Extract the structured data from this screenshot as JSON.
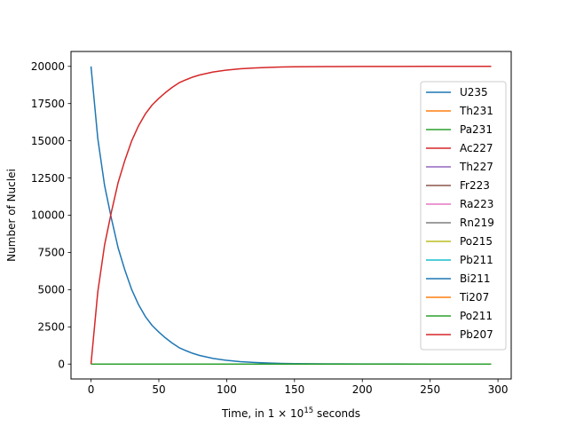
{
  "chart_data": {
    "type": "line",
    "title": "",
    "xlabel": "Time, in 1 × 10",
    "xlabel_exponent": "15",
    "xlabel_suffix": " seconds",
    "ylabel": "Number of Nuclei",
    "xlim": [
      -14.75,
      309.75
    ],
    "ylim": [
      -1000,
      21000
    ],
    "xticks": [
      0,
      50,
      100,
      150,
      200,
      250,
      300
    ],
    "xtick_labels": [
      "0",
      "50",
      "100",
      "150",
      "200",
      "250",
      "300"
    ],
    "yticks": [
      0,
      2500,
      5000,
      7500,
      10000,
      12500,
      15000,
      17500,
      20000
    ],
    "ytick_labels": [
      "0",
      "2500",
      "5000",
      "7500",
      "10000",
      "12500",
      "15000",
      "17500",
      "20000"
    ],
    "grid": false,
    "legend_position": "upper-right",
    "x": [
      0,
      5,
      10,
      15,
      20,
      25,
      30,
      35,
      40,
      45,
      50,
      55,
      60,
      65,
      70,
      75,
      80,
      90,
      100,
      110,
      120,
      130,
      140,
      150,
      175,
      200,
      225,
      250,
      275,
      295
    ],
    "series": [
      {
        "name": "U235",
        "color": "#1f77b4",
        "values": [
          20000,
          15150,
          12000,
          9800,
          7800,
          6300,
          5000,
          4000,
          3200,
          2600,
          2150,
          1750,
          1400,
          1100,
          900,
          720,
          580,
          380,
          250,
          160,
          110,
          70,
          45,
          30,
          15,
          7,
          4,
          2,
          1,
          0
        ]
      },
      {
        "name": "Th231",
        "color": "#ff7f0e",
        "values": [
          0,
          0,
          0,
          0,
          0,
          0,
          0,
          0,
          0,
          0,
          0,
          0,
          0,
          0,
          0,
          0,
          0,
          0,
          0,
          0,
          0,
          0,
          0,
          0,
          0,
          0,
          0,
          0,
          0,
          0
        ]
      },
      {
        "name": "Pa231",
        "color": "#2ca02c",
        "values": [
          0,
          0,
          0,
          0,
          0,
          0,
          0,
          0,
          0,
          0,
          0,
          0,
          0,
          0,
          0,
          0,
          0,
          0,
          0,
          0,
          0,
          0,
          0,
          0,
          0,
          0,
          0,
          0,
          0,
          0
        ]
      },
      {
        "name": "Ac227",
        "color": "#d62728",
        "values": [
          0,
          0,
          0,
          0,
          0,
          0,
          0,
          0,
          0,
          0,
          0,
          0,
          0,
          0,
          0,
          0,
          0,
          0,
          0,
          0,
          0,
          0,
          0,
          0,
          0,
          0,
          0,
          0,
          0,
          0
        ]
      },
      {
        "name": "Th227",
        "color": "#9467bd",
        "values": [
          0,
          0,
          0,
          0,
          0,
          0,
          0,
          0,
          0,
          0,
          0,
          0,
          0,
          0,
          0,
          0,
          0,
          0,
          0,
          0,
          0,
          0,
          0,
          0,
          0,
          0,
          0,
          0,
          0,
          0
        ]
      },
      {
        "name": "Fr223",
        "color": "#8c564b",
        "values": [
          0,
          0,
          0,
          0,
          0,
          0,
          0,
          0,
          0,
          0,
          0,
          0,
          0,
          0,
          0,
          0,
          0,
          0,
          0,
          0,
          0,
          0,
          0,
          0,
          0,
          0,
          0,
          0,
          0,
          0
        ]
      },
      {
        "name": "Ra223",
        "color": "#e377c2",
        "values": [
          0,
          0,
          0,
          0,
          0,
          0,
          0,
          0,
          0,
          0,
          0,
          0,
          0,
          0,
          0,
          0,
          0,
          0,
          0,
          0,
          0,
          0,
          0,
          0,
          0,
          0,
          0,
          0,
          0,
          0
        ]
      },
      {
        "name": "Rn219",
        "color": "#7f7f7f",
        "values": [
          0,
          0,
          0,
          0,
          0,
          0,
          0,
          0,
          0,
          0,
          0,
          0,
          0,
          0,
          0,
          0,
          0,
          0,
          0,
          0,
          0,
          0,
          0,
          0,
          0,
          0,
          0,
          0,
          0,
          0
        ]
      },
      {
        "name": "Po215",
        "color": "#bcbd22",
        "values": [
          0,
          0,
          0,
          0,
          0,
          0,
          0,
          0,
          0,
          0,
          0,
          0,
          0,
          0,
          0,
          0,
          0,
          0,
          0,
          0,
          0,
          0,
          0,
          0,
          0,
          0,
          0,
          0,
          0,
          0
        ]
      },
      {
        "name": "Pb211",
        "color": "#17becf",
        "values": [
          0,
          0,
          0,
          0,
          0,
          0,
          0,
          0,
          0,
          0,
          0,
          0,
          0,
          0,
          0,
          0,
          0,
          0,
          0,
          0,
          0,
          0,
          0,
          0,
          0,
          0,
          0,
          0,
          0,
          0
        ]
      },
      {
        "name": "Bi211",
        "color": "#1f77b4",
        "values": [
          0,
          0,
          0,
          0,
          0,
          0,
          0,
          0,
          0,
          0,
          0,
          0,
          0,
          0,
          0,
          0,
          0,
          0,
          0,
          0,
          0,
          0,
          0,
          0,
          0,
          0,
          0,
          0,
          0,
          0
        ]
      },
      {
        "name": "Ti207",
        "color": "#ff7f0e",
        "values": [
          0,
          0,
          0,
          0,
          0,
          0,
          0,
          0,
          0,
          0,
          0,
          0,
          0,
          0,
          0,
          0,
          0,
          0,
          0,
          0,
          0,
          0,
          0,
          0,
          0,
          0,
          0,
          0,
          0,
          0
        ]
      },
      {
        "name": "Po211",
        "color": "#2ca02c",
        "values": [
          0,
          0,
          0,
          0,
          0,
          0,
          0,
          0,
          0,
          0,
          0,
          0,
          0,
          0,
          0,
          0,
          0,
          0,
          0,
          0,
          0,
          0,
          0,
          0,
          0,
          0,
          0,
          0,
          0,
          0
        ]
      },
      {
        "name": "Pb207",
        "color": "#d62728",
        "values": [
          0,
          4850,
          8000,
          10200,
          12200,
          13700,
          15000,
          16000,
          16800,
          17400,
          17850,
          18250,
          18600,
          18900,
          19100,
          19280,
          19420,
          19620,
          19750,
          19840,
          19890,
          19930,
          19955,
          19970,
          19985,
          19993,
          19996,
          19998,
          19999,
          20000
        ]
      }
    ]
  }
}
